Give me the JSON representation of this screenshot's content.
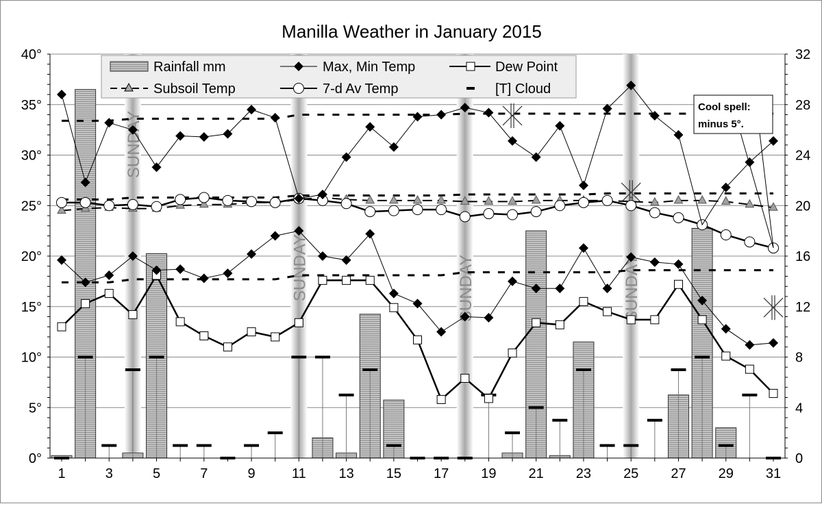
{
  "chart_data": {
    "type": "combo bar + line",
    "title": "Manilla Weather in January 2015",
    "x": [
      1,
      2,
      3,
      4,
      5,
      6,
      7,
      8,
      9,
      10,
      11,
      12,
      13,
      14,
      15,
      16,
      17,
      18,
      19,
      20,
      21,
      22,
      23,
      24,
      25,
      26,
      27,
      28,
      29,
      30,
      31
    ],
    "x_tick_labels": [
      "1",
      "3",
      "5",
      "7",
      "9",
      "11",
      "13",
      "15",
      "17",
      "19",
      "21",
      "23",
      "25",
      "27",
      "29",
      "31"
    ],
    "left_axis": {
      "range": [
        0,
        40
      ],
      "ticks": [
        "0°",
        "5°",
        "10°",
        "15°",
        "20°",
        "25°",
        "30°",
        "35°",
        "40°"
      ]
    },
    "right_axis": {
      "range": [
        0,
        32
      ],
      "ticks": [
        "0",
        "4",
        "8",
        "12",
        "16",
        "20",
        "24",
        "28",
        "32"
      ]
    },
    "grid": true,
    "legend_position": "top",
    "sunday_label": "SUNDAY",
    "sundays": [
      4,
      11,
      18,
      25
    ],
    "series": [
      {
        "name": "Rainfall mm",
        "kind": "bar",
        "axis": "right",
        "color": "#b0b0b0",
        "values": [
          0.2,
          29.2,
          0,
          0.4,
          16.2,
          0,
          0,
          0,
          0,
          0,
          0,
          1.6,
          0.4,
          11.4,
          4.6,
          0,
          0,
          0,
          0,
          0.4,
          18.0,
          0.2,
          9.2,
          0,
          0,
          0,
          5.0,
          18.2,
          2.4,
          0,
          0
        ]
      },
      {
        "name": "Max, Min Temp",
        "kind": "line-diamond",
        "axis": "left",
        "max": [
          36.0,
          27.3,
          33.2,
          32.5,
          28.8,
          31.9,
          31.8,
          32.1,
          34.5,
          33.7,
          25.7,
          26.1,
          29.8,
          32.8,
          30.8,
          33.8,
          34.0,
          34.7,
          34.2,
          31.4,
          29.8,
          32.9,
          27.0,
          34.6,
          36.9,
          33.9,
          32.0,
          23.1,
          26.8,
          29.3,
          31.4
        ],
        "min": [
          19.6,
          17.4,
          18.1,
          20.0,
          18.6,
          18.7,
          17.8,
          18.3,
          20.2,
          22.0,
          22.5,
          20.0,
          19.6,
          22.2,
          16.3,
          15.3,
          12.5,
          14.0,
          13.9,
          17.5,
          16.8,
          16.8,
          20.8,
          16.8,
          19.9,
          19.4,
          19.2,
          15.6,
          12.8,
          11.2,
          11.4
        ]
      },
      {
        "name": "Dew Point",
        "kind": "line-square",
        "axis": "left",
        "values": [
          13.0,
          15.3,
          16.3,
          14.2,
          18.1,
          13.5,
          12.1,
          11.0,
          12.5,
          12.0,
          13.4,
          17.6,
          17.6,
          17.6,
          14.9,
          11.7,
          5.8,
          7.9,
          5.9,
          10.4,
          13.4,
          13.2,
          15.5,
          14.5,
          13.7,
          13.7,
          17.2,
          13.7,
          10.1,
          8.8,
          6.4
        ]
      },
      {
        "name": "Subsoil Temp",
        "kind": "dashed-triangle",
        "axis": "left",
        "color": "#a0a0a0",
        "values": [
          24.5,
          24.7,
          24.8,
          24.7,
          24.7,
          25.0,
          25.1,
          25.1,
          25.3,
          25.3,
          25.6,
          25.8,
          25.6,
          25.5,
          25.5,
          25.5,
          25.5,
          25.4,
          25.4,
          25.4,
          25.5,
          25.5,
          25.5,
          25.5,
          25.4,
          25.3,
          25.5,
          25.5,
          25.4,
          25.1,
          24.8
        ]
      },
      {
        "name": "7-d Av Temp",
        "kind": "line-circle",
        "axis": "left",
        "values": [
          25.3,
          25.3,
          25.0,
          25.1,
          24.9,
          25.6,
          25.8,
          25.5,
          25.4,
          25.3,
          25.7,
          25.5,
          25.2,
          24.4,
          24.5,
          24.6,
          24.6,
          23.9,
          24.2,
          24.1,
          24.4,
          25.0,
          25.3,
          25.5,
          25.0,
          24.3,
          23.8,
          23.1,
          22.1,
          21.4,
          20.8
        ]
      },
      {
        "name": "[T] Cloud",
        "kind": "dash",
        "axis": "right",
        "values": [
          0,
          8,
          1,
          7,
          8,
          1,
          1,
          0,
          1,
          2,
          8,
          8,
          5,
          7,
          1,
          0,
          0,
          0,
          5,
          2,
          4,
          3,
          7,
          1,
          1,
          3,
          7,
          8,
          1,
          5,
          0
        ]
      }
    ],
    "reference_lines": {
      "max_mean": [
        33.4,
        33.4,
        33.4,
        33.6,
        33.6,
        33.6,
        33.6,
        33.6,
        33.6,
        33.6,
        34.0,
        34.0,
        34.0,
        34.0,
        34.0,
        34.0,
        34.0,
        34.1,
        34.1,
        34.1,
        34.1,
        34.1,
        34.1,
        34.1,
        34.1,
        34.1,
        34.1,
        34.1,
        34.1,
        34.1,
        34.1
      ],
      "avg_mean": [
        25.6,
        25.6,
        25.6,
        25.8,
        25.8,
        25.8,
        25.8,
        25.8,
        25.8,
        25.8,
        26.0,
        26.0,
        26.0,
        26.0,
        26.0,
        26.0,
        26.0,
        26.1,
        26.1,
        26.1,
        26.1,
        26.1,
        26.1,
        26.2,
        26.2,
        26.2,
        26.2,
        26.2,
        26.2,
        26.2,
        26.2
      ],
      "min_mean": [
        17.4,
        17.4,
        17.4,
        17.7,
        17.7,
        17.7,
        17.7,
        17.7,
        17.7,
        17.7,
        18.1,
        18.1,
        18.1,
        18.1,
        18.1,
        18.1,
        18.1,
        18.4,
        18.4,
        18.4,
        18.4,
        18.4,
        18.4,
        18.4,
        18.6,
        18.6,
        18.6,
        18.6,
        18.6,
        18.6,
        18.6
      ],
      "star_markers": [
        {
          "day": 20,
          "value": 33.9
        },
        {
          "day": 25,
          "value": 26.3
        },
        {
          "day": 31,
          "value": 14.9
        }
      ]
    },
    "annotation": {
      "line1": "Cool spell:",
      "line2": "minus 5°.",
      "points_to_days": [
        28,
        31
      ]
    }
  },
  "legend": {
    "rainfall": "Rainfall mm",
    "maxmin": "Max, Min Temp",
    "dew": "Dew Point",
    "subsoil": "Subsoil Temp",
    "avg": "7-d Av Temp",
    "cloud": "[T] Cloud"
  }
}
